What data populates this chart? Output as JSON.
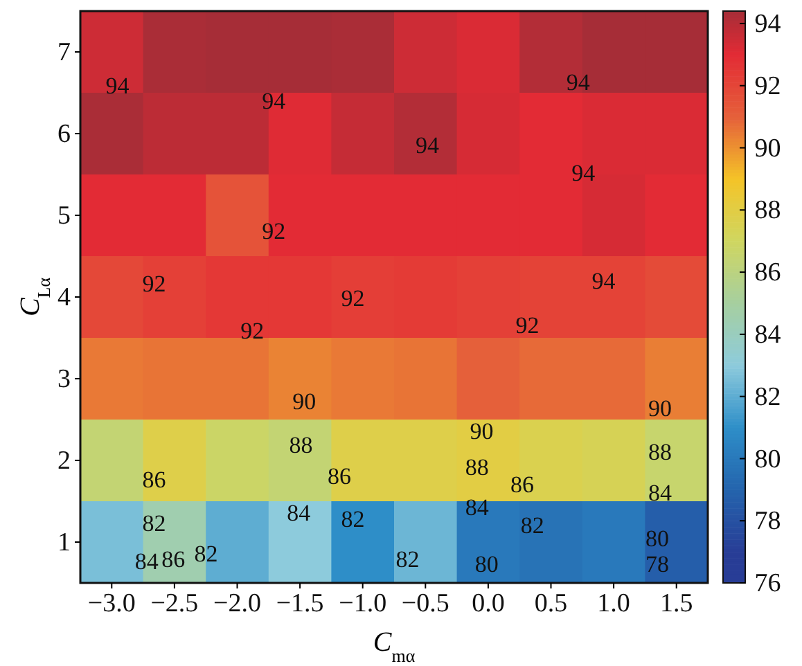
{
  "chart_data": {
    "type": "heatmap",
    "xlabel": "C$_{mα}$",
    "ylabel": "C$_{Lα}$",
    "categories": [
      "−3.0",
      "−2.5",
      "−2.0",
      "−1.5",
      "−1.0",
      "−0.5",
      "0.0",
      "0.5",
      "1.0",
      "1.5"
    ],
    "y_categories": [
      "7",
      "6",
      "5",
      "4",
      "3",
      "2",
      "1"
    ],
    "cells": [
      [
        93.5,
        94.3,
        94.4,
        94.4,
        94.3,
        93.5,
        93.2,
        94.1,
        94.4,
        94.4
      ],
      [
        94.3,
        93.9,
        93.9,
        93.1,
        93.7,
        94.1,
        93.3,
        93.0,
        93.2,
        93.2
      ],
      [
        93.0,
        93.0,
        91.5,
        93.0,
        93.0,
        93.0,
        93.0,
        93.0,
        93.3,
        93.0
      ],
      [
        91.9,
        92.2,
        92.5,
        92.5,
        92.3,
        92.4,
        92.2,
        92.1,
        92.1,
        91.8
      ],
      [
        90.5,
        90.6,
        90.6,
        90.3,
        90.5,
        90.6,
        91.0,
        90.8,
        90.8,
        90.4
      ],
      [
        86.4,
        87.8,
        86.8,
        86.4,
        87.8,
        87.8,
        88.0,
        87.6,
        87.4,
        86.6
      ],
      [
        82.6,
        84.5,
        82.0,
        83.0,
        81.0,
        82.3,
        80.0,
        79.7,
        80.0,
        78.7
      ]
    ],
    "clim": [
      76,
      94.4
    ],
    "cticks": [
      76,
      78,
      80,
      82,
      84,
      86,
      88,
      90,
      92,
      94
    ],
    "colors": [
      "#283d96",
      "#2464ad",
      "#2e8ec8",
      "#8dcbdc",
      "#a6cfa0",
      "#cfd660",
      "#f4c428",
      "#e5603a",
      "#e32b35",
      "#8c2e38"
    ],
    "annotations": [
      "94",
      "94",
      "94",
      "94",
      "94",
      "92",
      "94",
      "92",
      "92",
      "92",
      "92",
      "90",
      "90",
      "90",
      "88",
      "88",
      "88",
      "86",
      "86",
      "86",
      "84",
      "84",
      "84",
      "82",
      "82",
      "82",
      "84",
      "86",
      "82",
      "82",
      "80",
      "80",
      "78"
    ]
  }
}
